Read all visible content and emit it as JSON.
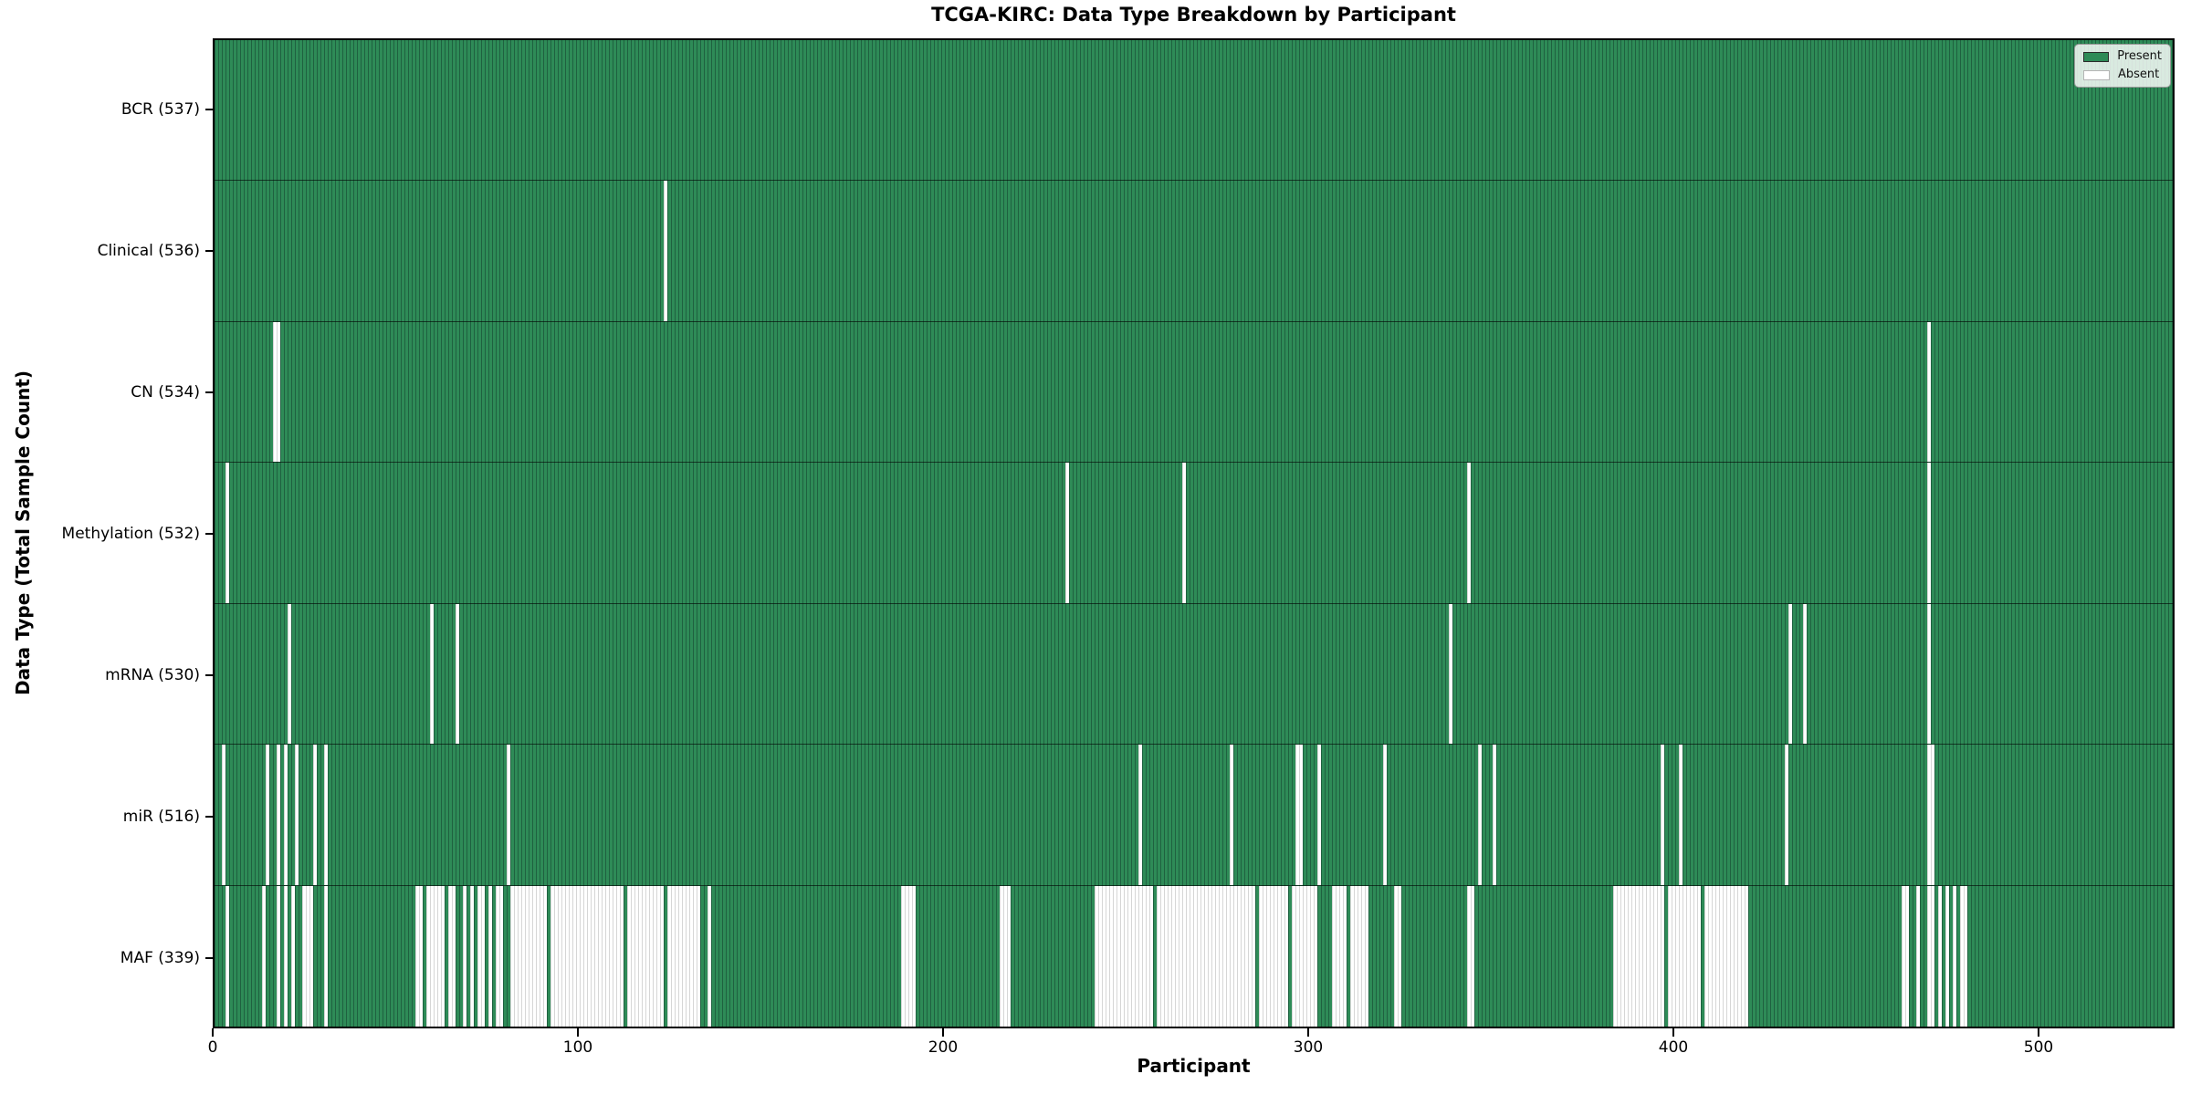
{
  "title": "TCGA-KIRC: Data Type Breakdown by Participant",
  "axes": {
    "x_label": "Participant",
    "y_label": "Data Type (Total Sample Count)"
  },
  "legend": {
    "items": [
      {
        "label": "Present",
        "kind": "present",
        "color": "#2e8b57"
      },
      {
        "label": "Absent",
        "kind": "absent",
        "color": "#ffffff"
      }
    ]
  },
  "colors": {
    "present_fill": "#2e8b57",
    "present_edge": "#1f6140",
    "absent_fill": "#ffffff",
    "absent_edge": "#d6d6d6",
    "spine": "#000000"
  },
  "chart_data": {
    "type": "heatmap",
    "title": "TCGA-KIRC: Data Type Breakdown by Participant",
    "xlabel": "Participant",
    "ylabel": "Data Type (Total Sample Count)",
    "x_range": [
      0,
      537
    ],
    "x_ticks": [
      0,
      100,
      200,
      300,
      400,
      500
    ],
    "total_participants": 537,
    "legend": [
      "Present",
      "Absent"
    ],
    "legend_position": "upper right",
    "grid": false,
    "rows": [
      {
        "data_type": "BCR",
        "label": "BCR (537)",
        "present_count": 537,
        "absent_count": 0,
        "absent_ranges": []
      },
      {
        "data_type": "Clinical",
        "label": "Clinical (536)",
        "present_count": 536,
        "absent_count": 1,
        "absent_ranges": [
          [
            123,
            123
          ]
        ]
      },
      {
        "data_type": "CN",
        "label": "CN (534)",
        "present_count": 534,
        "absent_count": 3,
        "absent_ranges": [
          [
            16,
            17
          ],
          [
            469,
            469
          ]
        ]
      },
      {
        "data_type": "Methylation",
        "label": "Methylation (532)",
        "present_count": 532,
        "absent_count": 5,
        "absent_ranges": [
          [
            3,
            3
          ],
          [
            233,
            233
          ],
          [
            265,
            265
          ],
          [
            343,
            343
          ],
          [
            469,
            469
          ]
        ]
      },
      {
        "data_type": "mRNA",
        "label": "mRNA (530)",
        "present_count": 530,
        "absent_count": 7,
        "absent_ranges": [
          [
            20,
            20
          ],
          [
            59,
            59
          ],
          [
            66,
            66
          ],
          [
            338,
            338
          ],
          [
            431,
            431
          ],
          [
            435,
            435
          ],
          [
            469,
            469
          ]
        ]
      },
      {
        "data_type": "miR",
        "label": "miR (516)",
        "present_count": 516,
        "absent_count": 21,
        "absent_ranges": [
          [
            2,
            2
          ],
          [
            14,
            14
          ],
          [
            17,
            17
          ],
          [
            19,
            19
          ],
          [
            22,
            22
          ],
          [
            27,
            27
          ],
          [
            30,
            30
          ],
          [
            80,
            80
          ],
          [
            253,
            253
          ],
          [
            278,
            278
          ],
          [
            296,
            297
          ],
          [
            302,
            302
          ],
          [
            320,
            320
          ],
          [
            346,
            346
          ],
          [
            350,
            350
          ],
          [
            396,
            396
          ],
          [
            401,
            401
          ],
          [
            430,
            430
          ],
          [
            469,
            470
          ]
        ]
      },
      {
        "data_type": "MAF",
        "label": "MAF (339)",
        "present_count": 339,
        "absent_count": 198,
        "absent_ranges": [
          [
            3,
            3
          ],
          [
            13,
            13
          ],
          [
            17,
            17
          ],
          [
            19,
            19
          ],
          [
            21,
            21
          ],
          [
            24,
            26
          ],
          [
            30,
            30
          ],
          [
            55,
            56
          ],
          [
            58,
            62
          ],
          [
            64,
            65
          ],
          [
            68,
            68
          ],
          [
            70,
            70
          ],
          [
            72,
            73
          ],
          [
            75,
            75
          ],
          [
            77,
            78
          ],
          [
            81,
            90
          ],
          [
            92,
            111
          ],
          [
            113,
            122
          ],
          [
            124,
            132
          ],
          [
            135,
            135
          ],
          [
            188,
            191
          ],
          [
            215,
            217
          ],
          [
            241,
            256
          ],
          [
            258,
            284
          ],
          [
            286,
            293
          ],
          [
            295,
            301
          ],
          [
            306,
            309
          ],
          [
            311,
            315
          ],
          [
            323,
            324
          ],
          [
            343,
            344
          ],
          [
            383,
            396
          ],
          [
            398,
            406
          ],
          [
            408,
            419
          ],
          [
            462,
            463
          ],
          [
            466,
            466
          ],
          [
            469,
            470
          ],
          [
            472,
            472
          ],
          [
            474,
            474
          ],
          [
            476,
            476
          ],
          [
            478,
            479
          ]
        ]
      }
    ]
  }
}
